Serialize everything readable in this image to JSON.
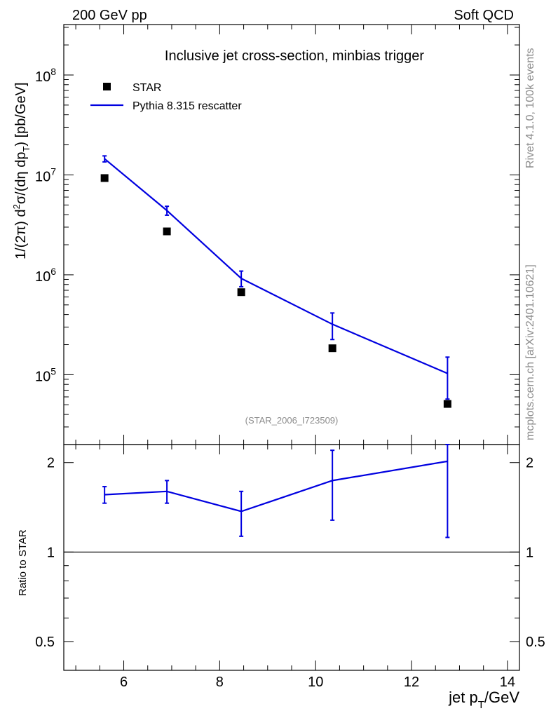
{
  "header": {
    "left": "200 GeV pp",
    "right": "Soft QCD"
  },
  "side": {
    "rivet": "Rivet 4.1.0,  100k events",
    "mcplots": "mcplots.cern.ch [arXiv:2401.10621]"
  },
  "colors": {
    "data": "#000000",
    "mc": "#0000e0",
    "watermark": "#8c8c8c"
  },
  "chart_data": [
    {
      "type": "scatter",
      "title": "Inclusive jet cross-section, minbias trigger",
      "analysis_id": "(STAR_2006_I723509)",
      "xlabel": {
        "main": "jet p",
        "sub": "T",
        "tail": "/GeV"
      },
      "ylabel": {
        "a": "1/(2π)   d",
        "sup2": "2",
        "b": "σ/(dη dp",
        "subT": "T",
        "c": ") [pb/GeV]"
      },
      "yscale": "log",
      "xlim": [
        4.75,
        14.25
      ],
      "ylim": [
        20000,
        320000000.0
      ],
      "x_ticks": [
        "6",
        "8",
        "10",
        "12",
        "14"
      ],
      "x_tick_values": [
        6,
        8,
        10,
        12,
        14
      ],
      "y_ticks": [
        {
          "value": 100000,
          "base": "10",
          "exp": "5"
        },
        {
          "value": 1000000,
          "base": "10",
          "exp": "6"
        },
        {
          "value": 10000000,
          "base": "10",
          "exp": "7"
        },
        {
          "value": 100000000,
          "base": "10",
          "exp": "8"
        }
      ],
      "legend_position": "top-left",
      "series": [
        {
          "name": "STAR",
          "kind": "markers",
          "x": [
            5.6,
            6.9,
            8.45,
            10.35,
            12.75
          ],
          "y": [
            9300000,
            2720000,
            670000,
            184000,
            51000
          ]
        },
        {
          "name": "Pythia 8.315 rescatter",
          "kind": "line",
          "x": [
            5.6,
            6.9,
            8.45,
            10.35,
            12.75
          ],
          "y": [
            14500000,
            4400000,
            920000,
            320000,
            103000
          ],
          "err_low": [
            13500000,
            3950000,
            760000,
            225000,
            57000
          ],
          "err_high": [
            15500000,
            4850000,
            1090000,
            415000,
            150000
          ]
        }
      ]
    },
    {
      "type": "line",
      "ylabel": "Ratio to STAR",
      "xlim": [
        4.75,
        14.25
      ],
      "ylim": [
        0.4,
        2.3
      ],
      "y_ticks": [
        "0.5",
        "1",
        "2"
      ],
      "y_tick_values": [
        0.5,
        1,
        2
      ],
      "reference_line": 1,
      "series": [
        {
          "name": "Pythia 8.315 rescatter",
          "x": [
            5.6,
            6.9,
            8.45,
            10.35,
            12.75
          ],
          "y": [
            1.56,
            1.6,
            1.37,
            1.74,
            2.02
          ],
          "err_low": [
            1.46,
            1.46,
            1.13,
            1.28,
            1.12
          ],
          "err_high": [
            1.66,
            1.74,
            1.6,
            2.2,
            2.3
          ]
        }
      ]
    }
  ]
}
